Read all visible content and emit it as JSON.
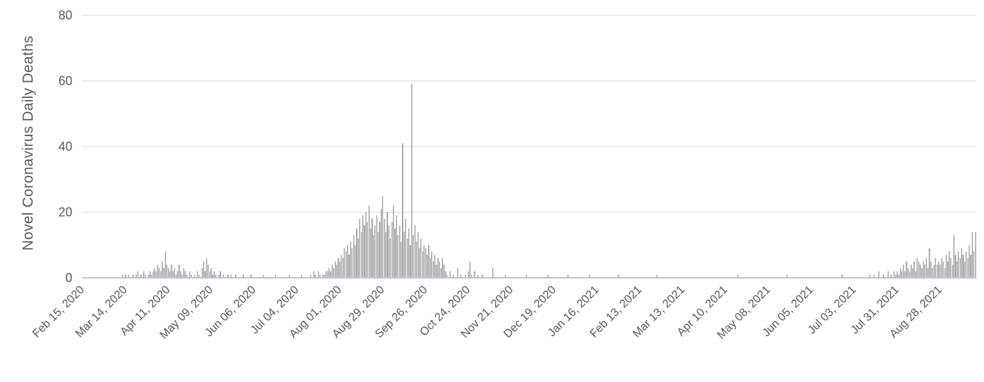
{
  "chart_data": {
    "type": "bar",
    "title": "",
    "ylabel": "Novel Coronavirus Daily Deaths",
    "xlabel": "",
    "ylim": [
      0,
      80
    ],
    "yticks": [
      0,
      20,
      40,
      60,
      80
    ],
    "grid": "horizontal",
    "legend": "none",
    "bar_color": "#a6a6a6",
    "grid_color": "#d9d9d9",
    "axis_line_color": "#b7c3de",
    "text_color": "#595959",
    "tick_every_days": 28,
    "x_tick_labels": [
      "Feb 15, 2020",
      "Mar 14, 2020",
      "Apr 11, 2020",
      "May 09, 2020",
      "Jun 06, 2020",
      "Jul 04, 2020",
      "Aug 01, 2020",
      "Aug 29, 2020",
      "Sep 26, 2020",
      "Oct 24, 2020",
      "Nov 21, 2020",
      "Dec 19, 2020",
      "Jan 16, 2021",
      "Feb 13, 2021",
      "Mar 13, 2021",
      "Apr 10, 2021",
      "May 08, 2021",
      "Jun 05, 2021",
      "Jul 03, 2021",
      "Jul 31, 2021",
      "Aug 28, 2021"
    ],
    "values": [
      0,
      0,
      0,
      0,
      0,
      0,
      0,
      0,
      0,
      0,
      0,
      0,
      0,
      0,
      0,
      0,
      0,
      0,
      0,
      0,
      0,
      0,
      0,
      0,
      0,
      0,
      1,
      0,
      1,
      0,
      1,
      0,
      0,
      1,
      0,
      1,
      2,
      0,
      1,
      0,
      2,
      1,
      0,
      1,
      2,
      1,
      2,
      3,
      2,
      4,
      3,
      2,
      5,
      3,
      8,
      4,
      3,
      2,
      4,
      2,
      3,
      1,
      2,
      4,
      2,
      1,
      3,
      2,
      1,
      0,
      2,
      1,
      0,
      1,
      0,
      2,
      1,
      0,
      3,
      5,
      2,
      6,
      4,
      2,
      3,
      1,
      2,
      1,
      0,
      1,
      2,
      0,
      1,
      0,
      0,
      1,
      0,
      1,
      0,
      0,
      1,
      0,
      0,
      0,
      0,
      1,
      0,
      0,
      0,
      0,
      1,
      0,
      0,
      0,
      0,
      0,
      0,
      0,
      1,
      0,
      0,
      0,
      0,
      0,
      0,
      0,
      1,
      0,
      0,
      0,
      0,
      0,
      0,
      0,
      0,
      1,
      0,
      0,
      0,
      0,
      0,
      0,
      0,
      1,
      0,
      0,
      0,
      0,
      0,
      1,
      0,
      2,
      1,
      0,
      2,
      1,
      0,
      1,
      1,
      2,
      2,
      3,
      2,
      4,
      3,
      5,
      4,
      6,
      5,
      7,
      6,
      9,
      8,
      10,
      7,
      11,
      9,
      13,
      10,
      15,
      12,
      18,
      14,
      19,
      16,
      20,
      17,
      22,
      15,
      18,
      13,
      16,
      19,
      14,
      17,
      21,
      25,
      18,
      14,
      20,
      16,
      12,
      17,
      22,
      15,
      19,
      13,
      16,
      11,
      41,
      14,
      18,
      12,
      15,
      10,
      59,
      13,
      16,
      11,
      14,
      9,
      12,
      8,
      10,
      9,
      7,
      10,
      6,
      8,
      5,
      7,
      4,
      6,
      5,
      3,
      6,
      4,
      2,
      1,
      0,
      2,
      0,
      1,
      0,
      0,
      3,
      0,
      1,
      0,
      0,
      1,
      0,
      2,
      5,
      1,
      0,
      2,
      0,
      1,
      0,
      0,
      1,
      0,
      0,
      0,
      0,
      0,
      0,
      3,
      0,
      0,
      0,
      0,
      0,
      0,
      0,
      1,
      0,
      0,
      0,
      0,
      0,
      0,
      0,
      0,
      0,
      0,
      0,
      0,
      0,
      1,
      0,
      0,
      0,
      0,
      0,
      0,
      0,
      0,
      0,
      0,
      0,
      0,
      0,
      1,
      0,
      0,
      0,
      0,
      0,
      0,
      0,
      0,
      0,
      0,
      0,
      0,
      1,
      0,
      0,
      0,
      0,
      0,
      0,
      0,
      0,
      0,
      0,
      0,
      0,
      0,
      1,
      0,
      0,
      0,
      0,
      0,
      0,
      0,
      0,
      0,
      0,
      0,
      0,
      0,
      0,
      0,
      0,
      0,
      0,
      1,
      0,
      0,
      0,
      0,
      0,
      0,
      0,
      0,
      0,
      0,
      0,
      0,
      0,
      0,
      0,
      0,
      0,
      0,
      0,
      0,
      0,
      0,
      0,
      0,
      1,
      0,
      0,
      0,
      0,
      0,
      0,
      0,
      0,
      0,
      0,
      0,
      0,
      0,
      0,
      0,
      0,
      0,
      0,
      0,
      0,
      0,
      0,
      0,
      0,
      0,
      0,
      0,
      0,
      0,
      0,
      0,
      0,
      0,
      0,
      0,
      0,
      0,
      0,
      0,
      0,
      0,
      0,
      0,
      0,
      0,
      0,
      0,
      0,
      0,
      0,
      0,
      0,
      1,
      0,
      0,
      0,
      0,
      0,
      0,
      0,
      0,
      0,
      0,
      0,
      0,
      0,
      0,
      0,
      0,
      0,
      0,
      0,
      0,
      0,
      0,
      0,
      0,
      0,
      0,
      0,
      0,
      0,
      0,
      0,
      1,
      0,
      0,
      0,
      0,
      0,
      0,
      0,
      0,
      0,
      0,
      0,
      0,
      0,
      0,
      0,
      0,
      0,
      0,
      0,
      0,
      0,
      0,
      0,
      0,
      0,
      0,
      0,
      0,
      0,
      0,
      0,
      0,
      0,
      0,
      0,
      1,
      0,
      0,
      0,
      0,
      0,
      0,
      0,
      0,
      0,
      0,
      0,
      0,
      0,
      0,
      0,
      0,
      0,
      1,
      0,
      0,
      1,
      0,
      0,
      2,
      0,
      0,
      1,
      0,
      0,
      2,
      0,
      1,
      0,
      2,
      1,
      2,
      1,
      3,
      2,
      4,
      2,
      5,
      3,
      2,
      4,
      3,
      5,
      2,
      6,
      5,
      4,
      3,
      5,
      4,
      6,
      3,
      9,
      5,
      3,
      4,
      6,
      4,
      5,
      4,
      6,
      5,
      3,
      7,
      5,
      8,
      6,
      4,
      13,
      7,
      5,
      8,
      6,
      9,
      7,
      5,
      8,
      6,
      10,
      7,
      14,
      8,
      14
    ]
  }
}
